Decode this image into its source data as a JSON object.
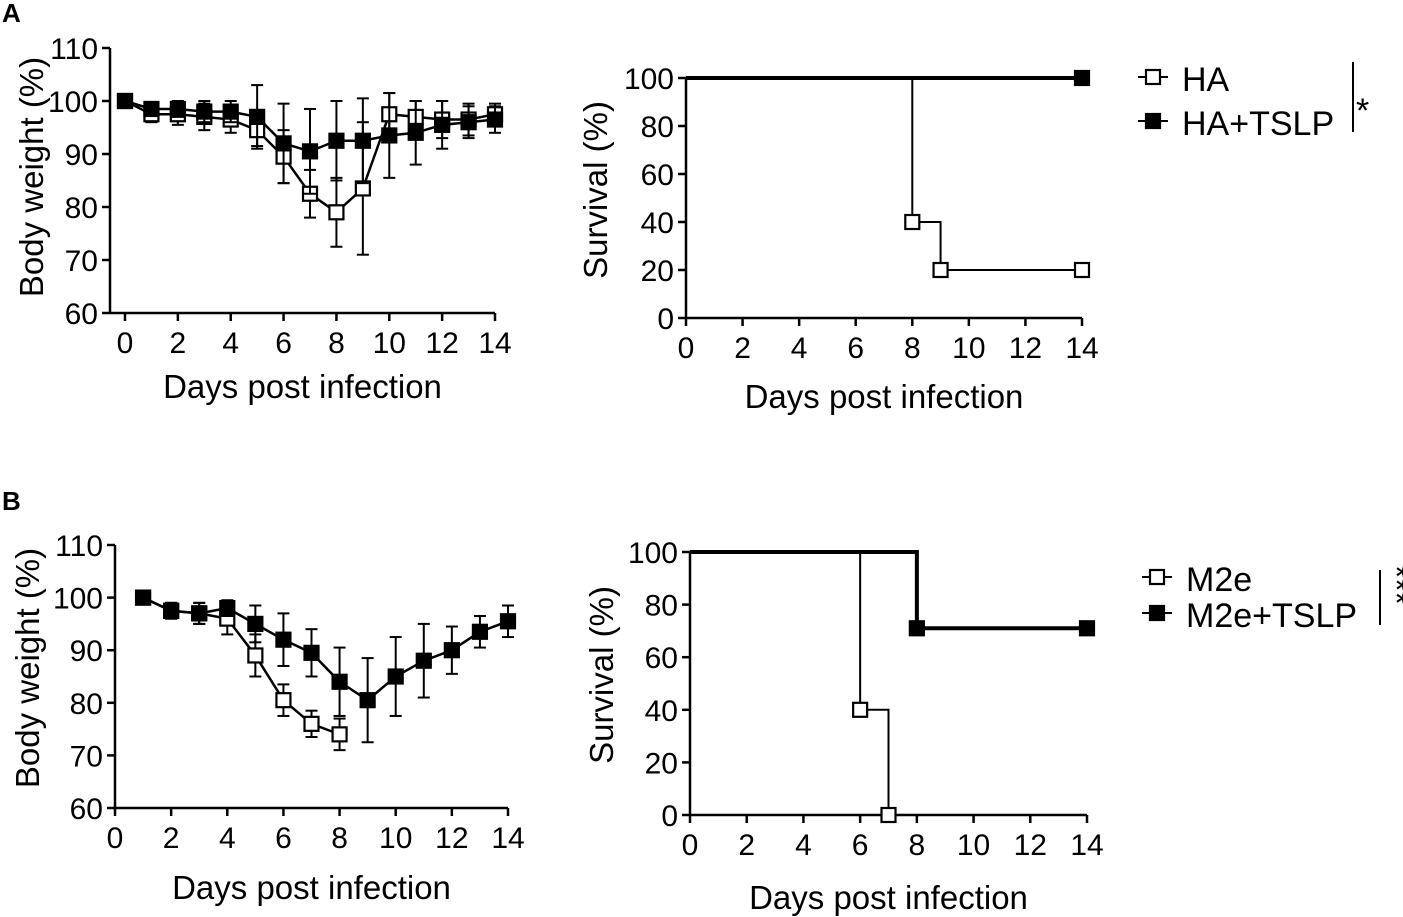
{
  "panels": [
    {
      "letter": "A"
    },
    {
      "letter": "B"
    }
  ],
  "chart_data": [
    {
      "id": "A-weight",
      "panel": "A",
      "type": "line",
      "xlabel": "Days post infection",
      "ylabel": "Body weight (%)",
      "xlim": [
        0,
        14
      ],
      "ylim": [
        60,
        110
      ],
      "xticks": [
        0,
        2,
        4,
        6,
        8,
        10,
        12,
        14
      ],
      "yticks": [
        60,
        70,
        80,
        90,
        100,
        110
      ],
      "series": [
        {
          "name": "HA",
          "marker": "open-square",
          "x": [
            0,
            1,
            2,
            3,
            4,
            5,
            6,
            7,
            8,
            9,
            10,
            11,
            12,
            13,
            14
          ],
          "y": [
            100,
            97.5,
            97.5,
            97,
            96.5,
            94.5,
            89.5,
            82.5,
            79,
            83.5,
            97.5,
            97,
            96.5,
            96.5,
            97.5
          ],
          "err": [
            0,
            1.5,
            2,
            2.5,
            2.5,
            3,
            5,
            4.5,
            6.5,
            12.5,
            4,
            3,
            3.5,
            3,
            2
          ]
        },
        {
          "name": "HA+TSLP",
          "marker": "filled-square",
          "x": [
            0,
            1,
            2,
            3,
            4,
            5,
            6,
            7,
            8,
            9,
            10,
            11,
            12,
            13,
            14
          ],
          "y": [
            100,
            98.5,
            98.5,
            98,
            98,
            97,
            92,
            90.5,
            92.5,
            92.5,
            93.5,
            94,
            95.5,
            96,
            96.5
          ],
          "err": [
            0,
            1,
            1.5,
            2,
            2,
            6,
            7.5,
            8,
            7.5,
            8,
            8,
            6,
            4.5,
            3,
            2.5
          ]
        }
      ]
    },
    {
      "id": "A-survival",
      "panel": "A",
      "type": "line",
      "step": true,
      "xlabel": "Days post infection",
      "ylabel": "Survival (%)",
      "xlim": [
        0,
        14
      ],
      "ylim": [
        0,
        100
      ],
      "xticks": [
        0,
        2,
        4,
        6,
        8,
        10,
        12,
        14
      ],
      "yticks": [
        0,
        20,
        40,
        60,
        80,
        100
      ],
      "series": [
        {
          "name": "HA",
          "marker": "open-square",
          "x": [
            0,
            8,
            9,
            14
          ],
          "y": [
            100,
            40,
            20,
            20
          ]
        },
        {
          "name": "HA+TSLP",
          "marker": "filled-square",
          "x": [
            0,
            14
          ],
          "y": [
            100,
            100
          ]
        }
      ],
      "legend": [
        "HA",
        "HA+TSLP"
      ],
      "significance": "*"
    },
    {
      "id": "B-weight",
      "panel": "B",
      "type": "line",
      "xlabel": "Days post infection",
      "ylabel": "Body weight (%)",
      "xlim": [
        0,
        14
      ],
      "ylim": [
        60,
        110
      ],
      "xticks": [
        0,
        2,
        4,
        6,
        8,
        10,
        12,
        14
      ],
      "yticks": [
        60,
        70,
        80,
        90,
        100,
        110
      ],
      "series": [
        {
          "name": "M2e",
          "marker": "open-square",
          "x": [
            1,
            2,
            3,
            4,
            5,
            6,
            7,
            8
          ],
          "y": [
            100,
            97.5,
            97,
            96,
            89,
            80.5,
            76,
            74
          ],
          "err": [
            0,
            1.5,
            2,
            3,
            4,
            3,
            2.5,
            3
          ]
        },
        {
          "name": "M2e+TSLP",
          "marker": "filled-square",
          "x": [
            1,
            2,
            3,
            4,
            5,
            6,
            7,
            8,
            9,
            10,
            11,
            12,
            13,
            14
          ],
          "y": [
            100,
            97.5,
            97,
            98,
            95,
            92,
            89.5,
            84,
            80.5,
            85,
            88,
            90,
            93.5,
            95.5
          ],
          "err": [
            0,
            1.5,
            2,
            1.5,
            3.5,
            5,
            4.5,
            6.5,
            8,
            7.5,
            7,
            4.5,
            3,
            3
          ]
        }
      ]
    },
    {
      "id": "B-survival",
      "panel": "B",
      "type": "line",
      "step": true,
      "xlabel": "Days post infection",
      "ylabel": "Survival (%)",
      "xlim": [
        0,
        14
      ],
      "ylim": [
        0,
        100
      ],
      "xticks": [
        0,
        2,
        4,
        6,
        8,
        10,
        12,
        14
      ],
      "yticks": [
        0,
        20,
        40,
        60,
        80,
        100
      ],
      "series": [
        {
          "name": "M2e",
          "marker": "open-square",
          "x": [
            0,
            6,
            7
          ],
          "y": [
            100,
            40,
            0
          ]
        },
        {
          "name": "M2e+TSLP",
          "marker": "filled-square",
          "x": [
            0,
            8,
            14
          ],
          "y": [
            100,
            71,
            71
          ]
        }
      ],
      "legend": [
        "M2e",
        "M2e+TSLP"
      ],
      "significance": "***"
    }
  ]
}
